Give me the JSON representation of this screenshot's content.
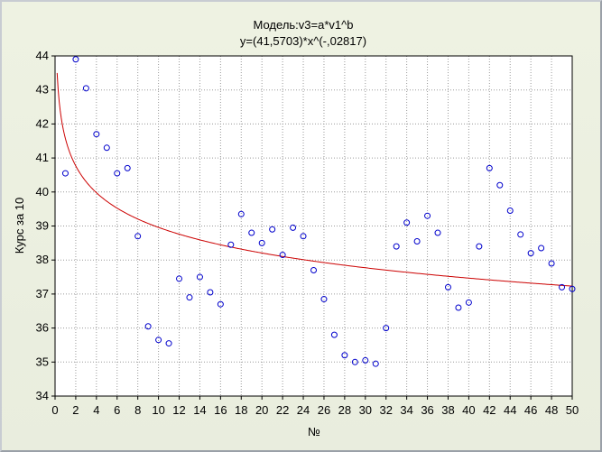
{
  "chart_data": {
    "type": "scatter",
    "title": "Модель:v3=a*v1^b",
    "subtitle": "y=(41,5703)*x^(-,02817)",
    "xlabel": "№",
    "ylabel": "Курс за 10",
    "xlim": [
      0,
      50
    ],
    "ylim": [
      34,
      44
    ],
    "xticks": [
      "0",
      "2",
      "4",
      "6",
      "8",
      "10",
      "12",
      "14",
      "16",
      "18",
      "20",
      "22",
      "24",
      "26",
      "28",
      "30",
      "32",
      "34",
      "36",
      "38",
      "40",
      "42",
      "44",
      "46",
      "48",
      "50"
    ],
    "yticks": [
      "34",
      "35",
      "36",
      "37",
      "38",
      "39",
      "40",
      "41",
      "42",
      "43",
      "44"
    ],
    "grid": true,
    "legend": "none",
    "point_color": "#0000cc",
    "curve_color": "#cc0000",
    "fit": {
      "a": 41.5703,
      "b": -0.02817
    },
    "points": [
      [
        1,
        40.55
      ],
      [
        2,
        43.9
      ],
      [
        3,
        43.05
      ],
      [
        4,
        41.7
      ],
      [
        5,
        41.3
      ],
      [
        6,
        40.55
      ],
      [
        7,
        40.7
      ],
      [
        8,
        38.7
      ],
      [
        9,
        36.05
      ],
      [
        10,
        35.65
      ],
      [
        11,
        35.55
      ],
      [
        12,
        37.45
      ],
      [
        13,
        36.9
      ],
      [
        14,
        37.5
      ],
      [
        15,
        37.05
      ],
      [
        16,
        36.7
      ],
      [
        17,
        38.45
      ],
      [
        18,
        39.35
      ],
      [
        19,
        38.8
      ],
      [
        20,
        38.5
      ],
      [
        21,
        38.9
      ],
      [
        22,
        38.15
      ],
      [
        23,
        38.95
      ],
      [
        24,
        38.7
      ],
      [
        25,
        37.7
      ],
      [
        26,
        36.85
      ],
      [
        27,
        35.8
      ],
      [
        28,
        35.2
      ],
      [
        29,
        35.0
      ],
      [
        30,
        35.05
      ],
      [
        31,
        34.95
      ],
      [
        32,
        36.0
      ],
      [
        33,
        38.4
      ],
      [
        34,
        39.1
      ],
      [
        35,
        38.55
      ],
      [
        36,
        39.3
      ],
      [
        37,
        38.8
      ],
      [
        38,
        37.2
      ],
      [
        39,
        36.6
      ],
      [
        40,
        36.75
      ],
      [
        41,
        38.4
      ],
      [
        42,
        40.7
      ],
      [
        43,
        40.2
      ],
      [
        44,
        39.45
      ],
      [
        45,
        38.75
      ],
      [
        46,
        38.2
      ],
      [
        47,
        38.35
      ],
      [
        48,
        37.9
      ],
      [
        49,
        37.2
      ],
      [
        50,
        37.15
      ]
    ]
  }
}
